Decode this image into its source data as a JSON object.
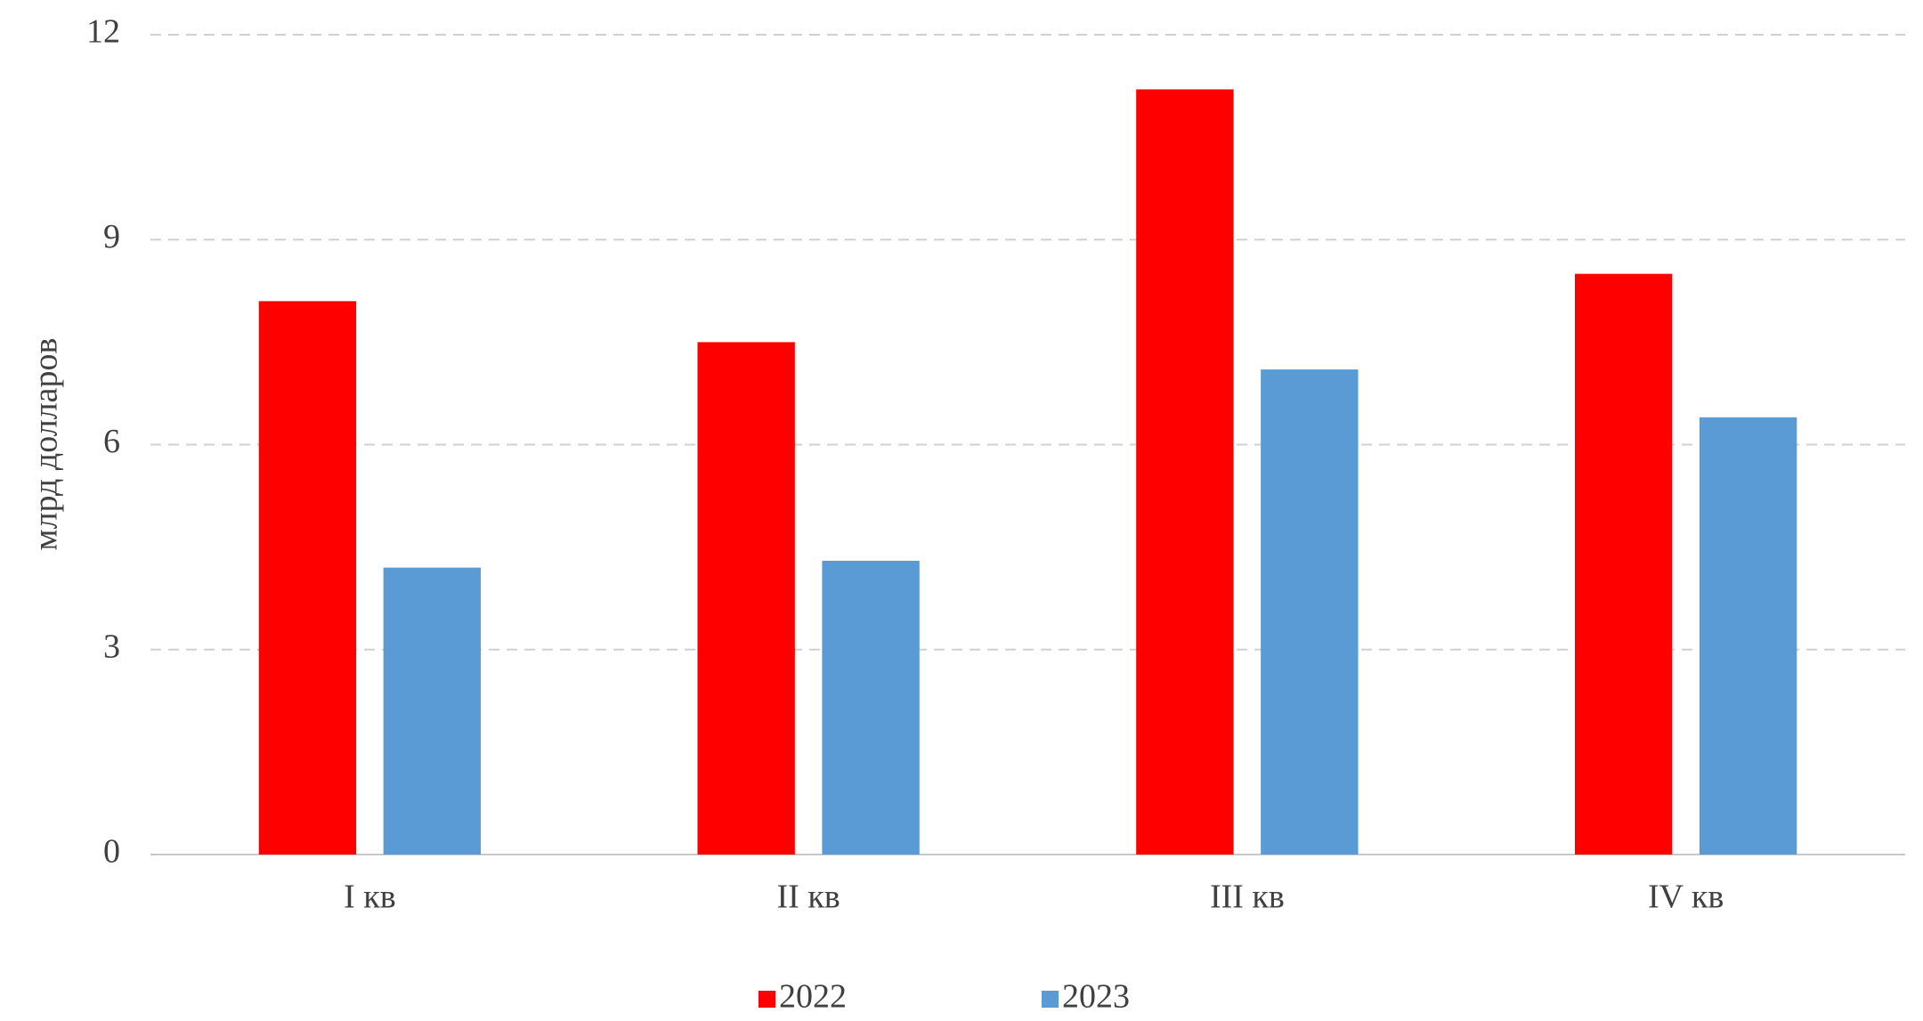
{
  "chart_data": {
    "type": "bar",
    "y_label": "млрд долларов",
    "categories": [
      "I кв",
      "II кв",
      "III кв",
      "IV кв"
    ],
    "series": [
      {
        "name": "2022",
        "color": "#ff0000",
        "values": [
          8.1,
          7.5,
          11.2,
          8.5
        ]
      },
      {
        "name": "2023",
        "color": "#5b9bd5",
        "values": [
          4.2,
          4.3,
          7.1,
          6.4
        ]
      }
    ],
    "ylim": [
      0,
      12
    ],
    "yticks": [
      0,
      3,
      6,
      9,
      12
    ],
    "grid": true,
    "legend": "bottom"
  }
}
